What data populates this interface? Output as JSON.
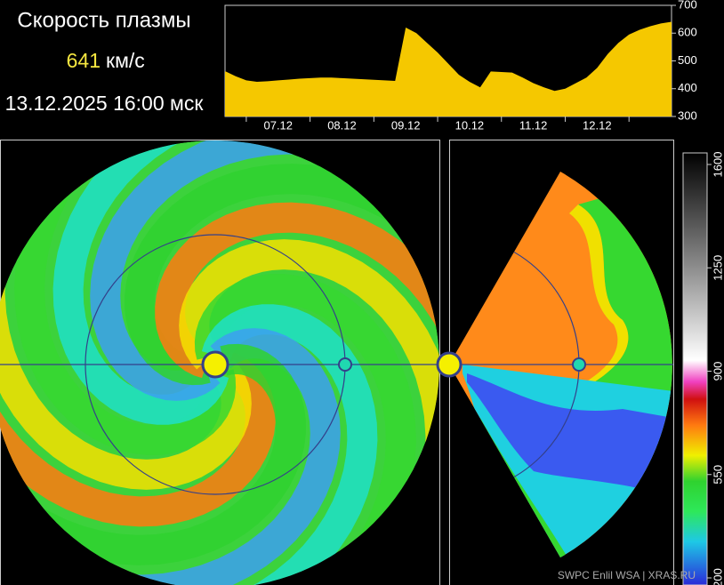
{
  "header": {
    "title": "Скорость плазмы",
    "speed": 641,
    "unit": "км/с",
    "timestamp": "13.12.2025 16:00 мск"
  },
  "chart_data": [
    {
      "type": "area",
      "color": "#f5c800",
      "categories": [
        null,
        null,
        null,
        null,
        null,
        "07.12",
        null,
        null,
        null,
        null,
        null,
        "08.12",
        null,
        null,
        null,
        null,
        null,
        "09.12",
        null,
        null,
        null,
        null,
        null,
        "10.12",
        null,
        null,
        null,
        null,
        null,
        "11.12",
        null,
        null,
        null,
        null,
        null,
        "12.12",
        null,
        null,
        null,
        null,
        null,
        null,
        null
      ],
      "values": [
        463,
        445,
        430,
        425,
        427,
        430,
        433,
        436,
        438,
        440,
        440,
        438,
        436,
        434,
        432,
        430,
        428,
        620,
        600,
        565,
        530,
        490,
        450,
        425,
        405,
        462,
        460,
        458,
        440,
        420,
        405,
        392,
        400,
        420,
        440,
        475,
        525,
        565,
        595,
        612,
        625,
        635,
        641
      ],
      "ylim": [
        300,
        700
      ],
      "yticks": [
        300,
        400,
        500,
        600,
        700
      ]
    },
    {
      "type": "colorbar",
      "ylim": [
        200,
        1600
      ],
      "yticks": [
        200,
        550,
        900,
        1250,
        1600
      ]
    }
  ],
  "credit": "SWPC Enlil WSA  |  XRAS.RU"
}
